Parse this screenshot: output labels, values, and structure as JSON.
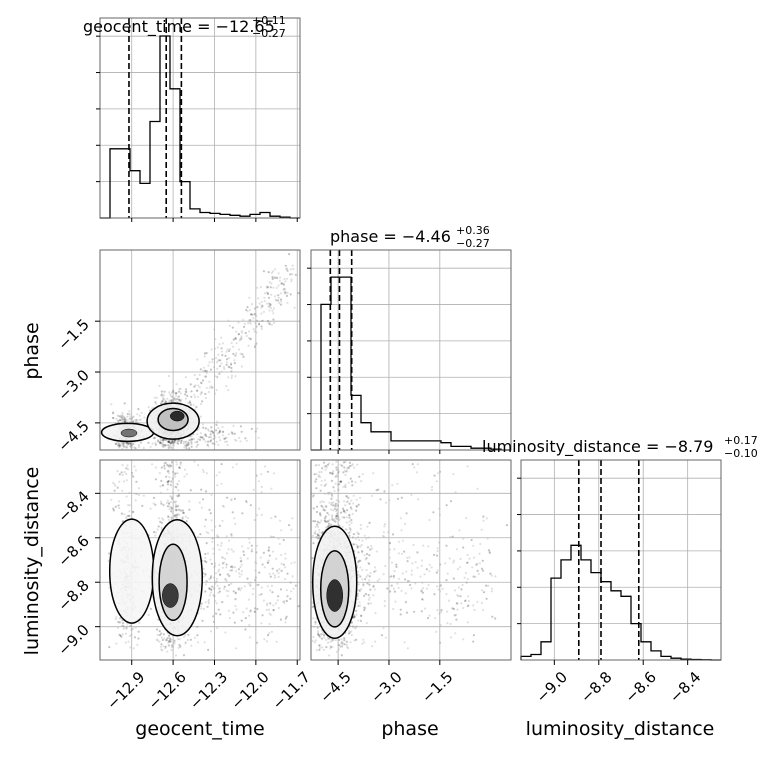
{
  "chart_data": {
    "type": "corner",
    "parameters": [
      "geocent_time",
      "phase",
      "luminosity_distance"
    ],
    "titles": [
      {
        "param": "geocent_time",
        "text": "geocent_time = −12.65",
        "plus": "+0.11",
        "minus": "−0.27"
      },
      {
        "param": "phase",
        "text": "phase = −4.46",
        "plus": "+0.36",
        "minus": "−0.27"
      },
      {
        "param": "luminosity_distance",
        "text": "luminosity_distance = −8.79",
        "plus": "+0.17",
        "minus": "−0.10"
      }
    ],
    "axis_labels": {
      "x": [
        "geocent_time",
        "phase",
        "luminosity_distance"
      ],
      "y": [
        "phase",
        "luminosity_distance"
      ]
    },
    "ticks": {
      "geocent_time": [
        "−12.9",
        "−12.6",
        "−12.3",
        "−12.0",
        "−11.7"
      ],
      "phase": [
        "−4.5",
        "−3.0",
        "−1.5"
      ],
      "luminosity_distance": [
        "−9.0",
        "−8.8",
        "−8.6",
        "−8.4"
      ]
    },
    "ranges": {
      "geocent_time": [
        -13.13,
        -11.68
      ],
      "phase": [
        -5.3,
        0.6
      ],
      "luminosity_distance": [
        -9.15,
        -8.25
      ]
    },
    "quantiles": {
      "geocent_time": [
        -12.92,
        -12.65,
        -12.54
      ],
      "phase": [
        -4.73,
        -4.46,
        -4.1
      ],
      "luminosity_distance": [
        -8.89,
        -8.79,
        -8.62
      ]
    },
    "histograms": {
      "geocent_time": [
        0,
        0.38,
        0.38,
        0.26,
        0.19,
        0.53,
        1.0,
        0.71,
        0.2,
        0.05,
        0.03,
        0.025,
        0.02,
        0.015,
        0.01,
        0.02,
        0.03,
        0.01,
        0.005,
        0
      ],
      "phase": [
        0,
        0.8,
        0.95,
        0.95,
        0.3,
        0.15,
        0.1,
        0.1,
        0.05,
        0.05,
        0.05,
        0.05,
        0.05,
        0.04,
        0.02,
        0.02,
        0.01,
        0.01,
        0.005,
        0
      ],
      "luminosity_distance": [
        0.02,
        0.03,
        0.1,
        0.45,
        0.55,
        0.63,
        0.55,
        0.48,
        0.43,
        0.38,
        0.35,
        0.2,
        0.1,
        0.05,
        0.02,
        0.01,
        0.005,
        0.003,
        0.001,
        0
      ]
    },
    "grid": true,
    "legend": "none"
  }
}
